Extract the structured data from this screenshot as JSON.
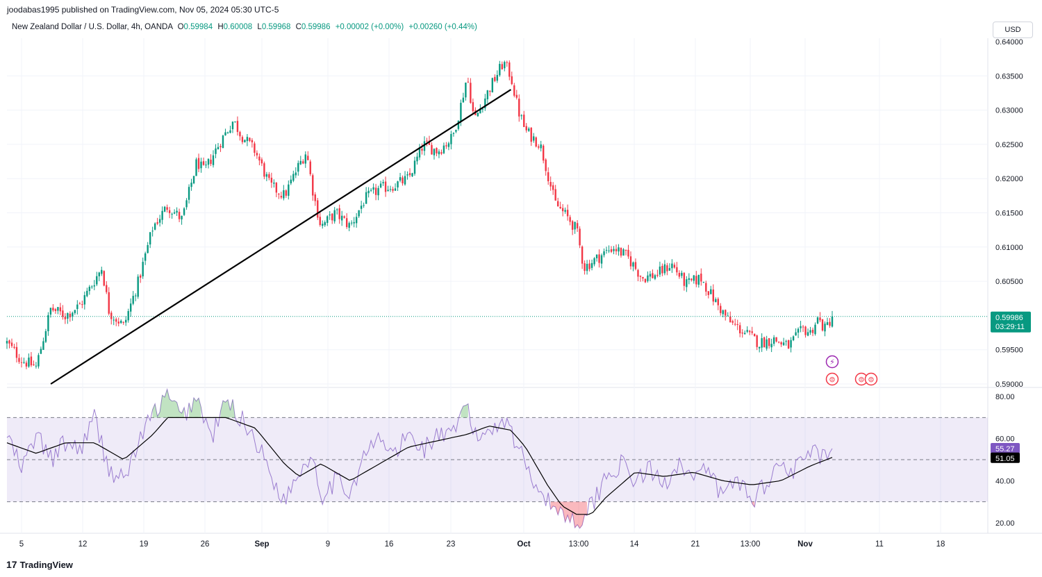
{
  "header": {
    "published_by": "joodabas1995 published on TradingView.com, Nov 05, 2024 05:30 UTC-5"
  },
  "legend": {
    "symbol": "New Zealand Dollar / U.S. Dollar, 4h, OANDA",
    "o_label": "O",
    "o_value": "0.59984",
    "h_label": "H",
    "h_value": "0.60008",
    "l_label": "L",
    "l_value": "0.59968",
    "c_label": "C",
    "c_value": "0.59986",
    "change": "+0.00002 (+0.00%)",
    "change2": "+0.00260 (+0.44%)"
  },
  "currency_button": "USD",
  "footer": {
    "brand": "TradingView",
    "logo_glyph": "17"
  },
  "price_label": {
    "price": "0.59986",
    "countdown": "03:29:11",
    "color": "#089981"
  },
  "rsi_labels": {
    "rsi": "55.27",
    "rsi_color": "#7e57c2",
    "ma": "51.05",
    "ma_color": "#000000"
  },
  "colors": {
    "up": "#089981",
    "down": "#f23645",
    "rsi_band": "#7e57c2",
    "trendline": "#000000"
  },
  "chart_data": [
    {
      "type": "candlestick",
      "title": "New Zealand Dollar / U.S. Dollar, 4h, OANDA",
      "y_ticks": [
        "0.63500",
        "0.63000",
        "0.62500",
        "0.62000",
        "0.61500",
        "0.61000",
        "0.60500",
        "0.59500",
        "0.59000"
      ],
      "ylim": [
        0.59,
        0.64
      ],
      "x_ticks": [
        "5",
        "12",
        "19",
        "26",
        "Sep",
        "9",
        "16",
        "23",
        "Oct",
        "13:00",
        "14",
        "21",
        "13:00",
        "Nov",
        "11",
        "18"
      ],
      "last_price": 0.59986,
      "close_path": [
        {
          "d": 0,
          "v": 0.596
        },
        {
          "d": 2,
          "v": 0.5935
        },
        {
          "d": 4,
          "v": 0.5925
        },
        {
          "d": 6,
          "v": 0.601
        },
        {
          "d": 8,
          "v": 0.6
        },
        {
          "d": 10,
          "v": 0.6015
        },
        {
          "d": 13,
          "v": 0.607
        },
        {
          "d": 14,
          "v": 0.6005
        },
        {
          "d": 16,
          "v": 0.5985
        },
        {
          "d": 18,
          "v": 0.605
        },
        {
          "d": 20,
          "v": 0.613
        },
        {
          "d": 22,
          "v": 0.616
        },
        {
          "d": 24,
          "v": 0.614
        },
        {
          "d": 26,
          "v": 0.6225
        },
        {
          "d": 27,
          "v": 0.621
        },
        {
          "d": 29,
          "v": 0.625
        },
        {
          "d": 31,
          "v": 0.6285
        },
        {
          "d": 32,
          "v": 0.6265
        },
        {
          "d": 34,
          "v": 0.624
        },
        {
          "d": 36,
          "v": 0.619
        },
        {
          "d": 38,
          "v": 0.6175
        },
        {
          "d": 40,
          "v": 0.622
        },
        {
          "d": 41,
          "v": 0.624
        },
        {
          "d": 42,
          "v": 0.6175
        },
        {
          "d": 43,
          "v": 0.613
        },
        {
          "d": 45,
          "v": 0.615
        },
        {
          "d": 47,
          "v": 0.613
        },
        {
          "d": 49,
          "v": 0.617
        },
        {
          "d": 51,
          "v": 0.6185
        },
        {
          "d": 53,
          "v": 0.619
        },
        {
          "d": 55,
          "v": 0.62
        },
        {
          "d": 57,
          "v": 0.625
        },
        {
          "d": 59,
          "v": 0.624
        },
        {
          "d": 61,
          "v": 0.626
        },
        {
          "d": 62,
          "v": 0.63
        },
        {
          "d": 63,
          "v": 0.635
        },
        {
          "d": 64,
          "v": 0.6285
        },
        {
          "d": 66,
          "v": 0.633
        },
        {
          "d": 68,
          "v": 0.637
        },
        {
          "d": 69,
          "v": 0.635
        },
        {
          "d": 70,
          "v": 0.63
        },
        {
          "d": 71,
          "v": 0.627
        },
        {
          "d": 73,
          "v": 0.625
        },
        {
          "d": 74,
          "v": 0.621
        },
        {
          "d": 75,
          "v": 0.6165
        },
        {
          "d": 77,
          "v": 0.614
        },
        {
          "d": 78,
          "v": 0.6125
        },
        {
          "d": 79,
          "v": 0.607
        },
        {
          "d": 81,
          "v": 0.6085
        },
        {
          "d": 83,
          "v": 0.61
        },
        {
          "d": 85,
          "v": 0.6085
        },
        {
          "d": 87,
          "v": 0.6055
        },
        {
          "d": 89,
          "v": 0.606
        },
        {
          "d": 91,
          "v": 0.6075
        },
        {
          "d": 93,
          "v": 0.6045
        },
        {
          "d": 95,
          "v": 0.6055
        },
        {
          "d": 97,
          "v": 0.602
        },
        {
          "d": 99,
          "v": 0.599
        },
        {
          "d": 101,
          "v": 0.5975
        },
        {
          "d": 103,
          "v": 0.596
        },
        {
          "d": 105,
          "v": 0.5965
        },
        {
          "d": 107,
          "v": 0.5955
        },
        {
          "d": 109,
          "v": 0.598
        },
        {
          "d": 110,
          "v": 0.5975
        },
        {
          "d": 111,
          "v": 0.5995
        },
        {
          "d": 112,
          "v": 0.598
        },
        {
          "d": 113,
          "v": 0.5998
        }
      ],
      "trendline": {
        "from": {
          "d": 6,
          "v": 0.59
        },
        "to": {
          "d": 69,
          "v": 0.633
        }
      }
    },
    {
      "type": "line",
      "title": "RSI",
      "y_ticks": [
        "80.00",
        "60.00",
        "40.00",
        "20.00"
      ],
      "ylim": [
        16,
        83
      ],
      "bands": {
        "upper": 70,
        "middle": 50,
        "lower": 30
      },
      "rsi_path": [
        {
          "d": 0,
          "v": 62
        },
        {
          "d": 2,
          "v": 45
        },
        {
          "d": 4,
          "v": 62
        },
        {
          "d": 6,
          "v": 50
        },
        {
          "d": 8,
          "v": 58
        },
        {
          "d": 10,
          "v": 55
        },
        {
          "d": 12,
          "v": 70
        },
        {
          "d": 14,
          "v": 45
        },
        {
          "d": 16,
          "v": 40
        },
        {
          "d": 18,
          "v": 58
        },
        {
          "d": 20,
          "v": 72
        },
        {
          "d": 22,
          "v": 80
        },
        {
          "d": 24,
          "v": 70
        },
        {
          "d": 26,
          "v": 80
        },
        {
          "d": 28,
          "v": 60
        },
        {
          "d": 30,
          "v": 78
        },
        {
          "d": 32,
          "v": 70
        },
        {
          "d": 34,
          "v": 60
        },
        {
          "d": 36,
          "v": 44
        },
        {
          "d": 38,
          "v": 30
        },
        {
          "d": 40,
          "v": 45
        },
        {
          "d": 42,
          "v": 52
        },
        {
          "d": 43,
          "v": 33
        },
        {
          "d": 45,
          "v": 40
        },
        {
          "d": 47,
          "v": 35
        },
        {
          "d": 49,
          "v": 52
        },
        {
          "d": 51,
          "v": 60
        },
        {
          "d": 53,
          "v": 52
        },
        {
          "d": 55,
          "v": 62
        },
        {
          "d": 57,
          "v": 55
        },
        {
          "d": 59,
          "v": 62
        },
        {
          "d": 61,
          "v": 60
        },
        {
          "d": 63,
          "v": 78
        },
        {
          "d": 64,
          "v": 60
        },
        {
          "d": 66,
          "v": 64
        },
        {
          "d": 68,
          "v": 70
        },
        {
          "d": 69,
          "v": 65
        },
        {
          "d": 70,
          "v": 55
        },
        {
          "d": 72,
          "v": 42
        },
        {
          "d": 74,
          "v": 30
        },
        {
          "d": 76,
          "v": 25
        },
        {
          "d": 78,
          "v": 20
        },
        {
          "d": 80,
          "v": 28
        },
        {
          "d": 82,
          "v": 42
        },
        {
          "d": 84,
          "v": 48
        },
        {
          "d": 86,
          "v": 40
        },
        {
          "d": 88,
          "v": 45
        },
        {
          "d": 90,
          "v": 38
        },
        {
          "d": 92,
          "v": 50
        },
        {
          "d": 94,
          "v": 40
        },
        {
          "d": 96,
          "v": 45
        },
        {
          "d": 98,
          "v": 32
        },
        {
          "d": 100,
          "v": 42
        },
        {
          "d": 102,
          "v": 30
        },
        {
          "d": 104,
          "v": 40
        },
        {
          "d": 106,
          "v": 48
        },
        {
          "d": 108,
          "v": 45
        },
        {
          "d": 110,
          "v": 54
        },
        {
          "d": 112,
          "v": 50
        },
        {
          "d": 113,
          "v": 55.27
        }
      ],
      "ma_path": [
        {
          "d": 0,
          "v": 58
        },
        {
          "d": 4,
          "v": 53
        },
        {
          "d": 8,
          "v": 58
        },
        {
          "d": 12,
          "v": 58
        },
        {
          "d": 16,
          "v": 50
        },
        {
          "d": 20,
          "v": 62
        },
        {
          "d": 22,
          "v": 70
        },
        {
          "d": 26,
          "v": 70
        },
        {
          "d": 30,
          "v": 70
        },
        {
          "d": 34,
          "v": 65
        },
        {
          "d": 38,
          "v": 48
        },
        {
          "d": 40,
          "v": 42
        },
        {
          "d": 43,
          "v": 48
        },
        {
          "d": 47,
          "v": 40
        },
        {
          "d": 51,
          "v": 48
        },
        {
          "d": 55,
          "v": 56
        },
        {
          "d": 59,
          "v": 59
        },
        {
          "d": 63,
          "v": 62
        },
        {
          "d": 66,
          "v": 66
        },
        {
          "d": 69,
          "v": 64
        },
        {
          "d": 71,
          "v": 56
        },
        {
          "d": 74,
          "v": 38
        },
        {
          "d": 76,
          "v": 28
        },
        {
          "d": 78,
          "v": 24
        },
        {
          "d": 80,
          "v": 24
        },
        {
          "d": 82,
          "v": 32
        },
        {
          "d": 86,
          "v": 44
        },
        {
          "d": 90,
          "v": 42
        },
        {
          "d": 94,
          "v": 44
        },
        {
          "d": 98,
          "v": 40
        },
        {
          "d": 102,
          "v": 38
        },
        {
          "d": 106,
          "v": 40
        },
        {
          "d": 110,
          "v": 47
        },
        {
          "d": 113,
          "v": 51.05
        }
      ],
      "last_rsi": 55.27,
      "last_ma": 51.05
    }
  ]
}
